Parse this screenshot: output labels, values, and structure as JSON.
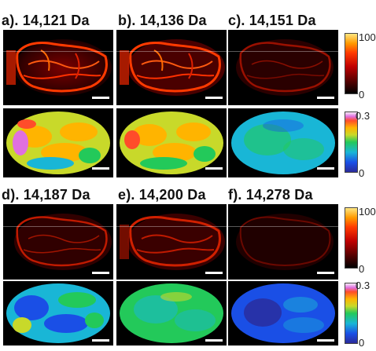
{
  "panels": [
    {
      "label": "a). 14,121 Da"
    },
    {
      "label": "b). 14,136 Da"
    },
    {
      "label": "c). 14,151 Da"
    },
    {
      "label": "d). 14,187 Da"
    },
    {
      "label": "e). 14,200 Da"
    },
    {
      "label": "f). 14,278 Da"
    }
  ],
  "colorbars": {
    "intensity": {
      "max": "100",
      "min": "0"
    },
    "ratio": {
      "max": "0.3",
      "min": "0"
    }
  },
  "colors": {
    "ion_hot": "#ff3a00",
    "ratio_high": "#e070e0",
    "ratio_low": "#1a4fe6"
  }
}
